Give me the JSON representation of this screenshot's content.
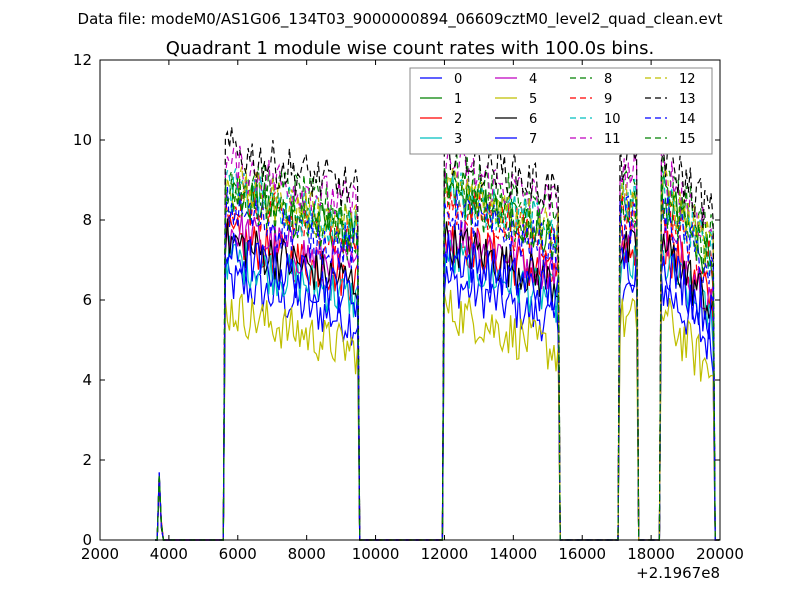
{
  "chart_data": {
    "type": "line",
    "suptitle": "Data file: modeM0/AS1G06_134T03_9000000894_06609cztM0_level2_quad_clean.evt",
    "title": "Quadrant 1 module wise count rates with 100.0s bins.",
    "xlabel": "",
    "ylabel": "",
    "x_offset_label": "+2.1967e8",
    "xlim": [
      2000,
      20000
    ],
    "ylim": [
      0,
      12
    ],
    "xticks": [
      2000,
      4000,
      6000,
      8000,
      10000,
      12000,
      14000,
      16000,
      18000,
      20000
    ],
    "xtick_labels": [
      "2000",
      "4000",
      "6000",
      "8000",
      "10000",
      "12000",
      "14000",
      "16000",
      "18000",
      "20000"
    ],
    "yticks": [
      0,
      2,
      4,
      6,
      8,
      10,
      12
    ],
    "ytick_labels": [
      "0",
      "2",
      "4",
      "6",
      "8",
      "10",
      "12"
    ],
    "grid": false,
    "legend_placement": "top-right",
    "legend_columns": 4,
    "x_note": "Time bins of 100 s. Modules are active in four observing windows (approx. 5600-9500, 12000-15300, 17100-17600, 18300-19800); outside these windows rates are 0. A short burst near 3700 (~2.0) decays to 0 by ~3800.",
    "segments": [
      {
        "x_start": 3700,
        "x_end": 3800,
        "pattern": "burst"
      },
      {
        "x_start": 5600,
        "x_end": 9500,
        "pattern": "plateau"
      },
      {
        "x_start": 12000,
        "x_end": 15300,
        "pattern": "plateau"
      },
      {
        "x_start": 17100,
        "x_end": 17600,
        "pattern": "spike"
      },
      {
        "x_start": 18300,
        "x_end": 19800,
        "pattern": "plateau_decay"
      }
    ],
    "series": [
      {
        "name": "0",
        "color": "#0000ff",
        "dash": "solid",
        "level": 5.6
      },
      {
        "name": "1",
        "color": "#008000",
        "dash": "solid",
        "level": 7.8
      },
      {
        "name": "2",
        "color": "#ff0000",
        "dash": "solid",
        "level": 6.7
      },
      {
        "name": "3",
        "color": "#00bfbf",
        "dash": "solid",
        "level": 6.2
      },
      {
        "name": "4",
        "color": "#bf00bf",
        "dash": "solid",
        "level": 6.9
      },
      {
        "name": "5",
        "color": "#bfbf00",
        "dash": "solid",
        "level": 4.9
      },
      {
        "name": "6",
        "color": "#000000",
        "dash": "solid",
        "level": 6.6
      },
      {
        "name": "7",
        "color": "#0000ff",
        "dash": "solid",
        "level": 6.3
      },
      {
        "name": "8",
        "color": "#008000",
        "dash": "dashed",
        "level": 8.3
      },
      {
        "name": "9",
        "color": "#ff0000",
        "dash": "dashed",
        "level": 7.6
      },
      {
        "name": "10",
        "color": "#00bfbf",
        "dash": "dashed",
        "level": 7.9
      },
      {
        "name": "11",
        "color": "#bf00bf",
        "dash": "dashed",
        "level": 8.5
      },
      {
        "name": "12",
        "color": "#bfbf00",
        "dash": "dashed",
        "level": 8.0
      },
      {
        "name": "13",
        "color": "#000000",
        "dash": "dashed",
        "level": 8.9
      },
      {
        "name": "14",
        "color": "#0000ff",
        "dash": "dashed",
        "level": 7.4
      },
      {
        "name": "15",
        "color": "#008000",
        "dash": "dashed",
        "level": 7.7
      }
    ]
  }
}
